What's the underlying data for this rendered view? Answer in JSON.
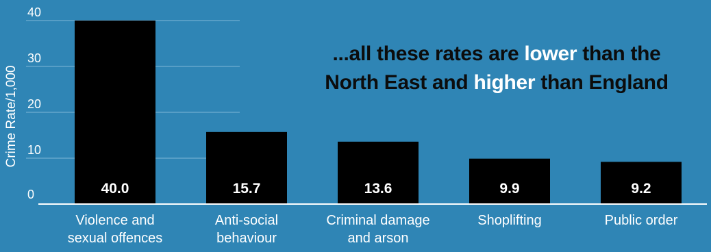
{
  "colors": {
    "background": "#2f85b5",
    "bar": "#000000",
    "text": "#ffffff",
    "grid": "#7fb6d6",
    "axis": "#ffffff"
  },
  "annotation": {
    "line1_prefix": "...all these rates are ",
    "line1_highlight": "lower",
    "line1_suffix": " than the",
    "line2_prefix": "North East and ",
    "line2_highlight": "higher",
    "line2_suffix": " than England"
  },
  "chart_data": {
    "type": "bar",
    "title": "",
    "xlabel": "",
    "ylabel": "Crime Rate/1,000",
    "ylim": [
      0,
      40
    ],
    "yticks": [
      0,
      10,
      20,
      30,
      40
    ],
    "grid": true,
    "categories": [
      [
        "Violence and",
        "sexual offences"
      ],
      [
        "Anti-social",
        "behaviour"
      ],
      [
        "Criminal damage",
        "and arson"
      ],
      [
        "Shoplifting"
      ],
      [
        "Public order"
      ]
    ],
    "values": [
      40.0,
      15.7,
      13.6,
      9.9,
      9.2
    ],
    "value_labels": [
      "40.0",
      "15.7",
      "13.6",
      "9.9",
      "9.2"
    ]
  }
}
